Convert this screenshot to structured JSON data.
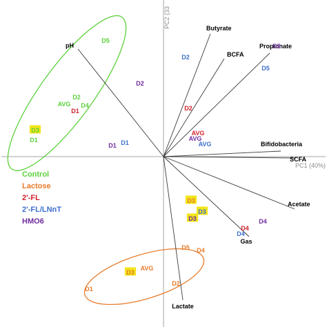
{
  "chart_data": {
    "type": "scatter",
    "title": "",
    "xlabel": "PC1 (40%)",
    "ylabel": "PC2 (33",
    "grid": false,
    "legend_position": "left",
    "colors": {
      "Control": "#5cd13c",
      "Lactose": "#e87b2a",
      "2'-FL": "#d11f2a",
      "2'-FL/LNnT": "#3d6fce",
      "HMO6": "#6f2c9e",
      "loadings": "#3a3a3a",
      "axes": "#a6a6a6",
      "highlight": "#f2e51a"
    },
    "legend": [
      "Control",
      "Lactose",
      "2'-FL",
      "2'-FL/LNnT",
      "HMO6"
    ],
    "loadings": [
      {
        "label": "pH",
        "x": -0.62,
        "y": 0.78
      },
      {
        "label": "Butyrate",
        "x": 0.34,
        "y": 0.89
      },
      {
        "label": "BCFA",
        "x": 0.44,
        "y": 0.71
      },
      {
        "label": "Propionate",
        "x": 0.77,
        "y": 0.75
      },
      {
        "label": "Bifidobacteria",
        "x": 0.85,
        "y": 0.04
      },
      {
        "label": "SCFA",
        "x": 0.96,
        "y": -0.01
      },
      {
        "label": "Acetate",
        "x": 0.95,
        "y": -0.38
      },
      {
        "label": "Gas",
        "x": 0.62,
        "y": -0.58
      },
      {
        "label": "Lactate",
        "x": 0.14,
        "y": -1.04
      }
    ],
    "scores": [
      {
        "label": "D5",
        "group": "Control",
        "x": -0.42,
        "y": 0.84,
        "highlight": false
      },
      {
        "label": "D2",
        "group": "Control",
        "x": -0.63,
        "y": 0.43,
        "highlight": false
      },
      {
        "label": "AVG",
        "group": "Control",
        "x": -0.72,
        "y": 0.38,
        "highlight": false
      },
      {
        "label": "D4",
        "group": "Control",
        "x": -0.57,
        "y": 0.37,
        "highlight": false
      },
      {
        "label": "D3",
        "group": "Control",
        "x": -0.93,
        "y": 0.19,
        "highlight": true
      },
      {
        "label": "D1",
        "group": "Control",
        "x": -0.94,
        "y": 0.12,
        "highlight": false
      },
      {
        "label": "D1",
        "group": "2'-FL",
        "x": -0.64,
        "y": 0.33,
        "highlight": false
      },
      {
        "label": "D2",
        "group": "2'-FL",
        "x": 0.18,
        "y": 0.35,
        "highlight": false
      },
      {
        "label": "AVG",
        "group": "2'-FL",
        "x": 0.25,
        "y": 0.17,
        "highlight": false
      },
      {
        "label": "D4",
        "group": "2'-FL",
        "x": 0.59,
        "y": -0.52,
        "highlight": false
      },
      {
        "label": "D2",
        "group": "2'-FL/LNnT",
        "x": 0.16,
        "y": 0.72,
        "highlight": false
      },
      {
        "label": "D5",
        "group": "2'-FL/LNnT",
        "x": 0.74,
        "y": 0.64,
        "highlight": false
      },
      {
        "label": "AVG",
        "group": "2'-FL/LNnT",
        "x": 0.3,
        "y": 0.09,
        "highlight": false
      },
      {
        "label": "D1",
        "group": "2'-FL/LNnT",
        "x": -0.28,
        "y": 0.1,
        "highlight": false
      },
      {
        "label": "D3",
        "group": "2'-FL/LNnT",
        "x": 0.28,
        "y": -0.4,
        "highlight": true
      },
      {
        "label": "D4",
        "group": "2'-FL/LNnT",
        "x": 0.56,
        "y": -0.56,
        "highlight": false
      },
      {
        "label": "D5",
        "group": "HMO6",
        "x": 0.82,
        "y": 0.8,
        "highlight": false
      },
      {
        "label": "D2",
        "group": "HMO6",
        "x": -0.17,
        "y": 0.53,
        "highlight": false
      },
      {
        "label": "AVG",
        "group": "HMO6",
        "x": 0.23,
        "y": 0.13,
        "highlight": false
      },
      {
        "label": "D1",
        "group": "HMO6",
        "x": -0.37,
        "y": 0.08,
        "highlight": false
      },
      {
        "label": "D3",
        "group": "HMO6",
        "x": 0.21,
        "y": -0.45,
        "highlight": true
      },
      {
        "label": "D4",
        "group": "HMO6",
        "x": 0.72,
        "y": -0.47,
        "highlight": false
      },
      {
        "label": "D3",
        "group": "Lactose",
        "x": 0.2,
        "y": -0.32,
        "highlight": true
      },
      {
        "label": "D5",
        "group": "Lactose",
        "x": 0.16,
        "y": -0.66,
        "highlight": false
      },
      {
        "label": "D4",
        "group": "Lactose",
        "x": 0.27,
        "y": -0.68,
        "highlight": false
      },
      {
        "label": "AVG",
        "group": "Lactose",
        "x": -0.12,
        "y": -0.81,
        "highlight": false
      },
      {
        "label": "D3",
        "group": "Lactose",
        "x": -0.24,
        "y": -0.84,
        "highlight": true
      },
      {
        "label": "D2",
        "group": "Lactose",
        "x": 0.09,
        "y": -0.92,
        "highlight": false
      },
      {
        "label": "D1",
        "group": "Lactose",
        "x": -0.54,
        "y": -0.96,
        "highlight": false
      }
    ],
    "ellipses": [
      {
        "group": "Control",
        "cx": -0.7,
        "cy": 0.46,
        "rx": 0.68,
        "ry": 0.19,
        "angle_deg": 54
      },
      {
        "group": "Lactose",
        "cx": -0.14,
        "cy": -0.87,
        "rx": 0.45,
        "ry": 0.16,
        "angle_deg": 17
      }
    ]
  }
}
